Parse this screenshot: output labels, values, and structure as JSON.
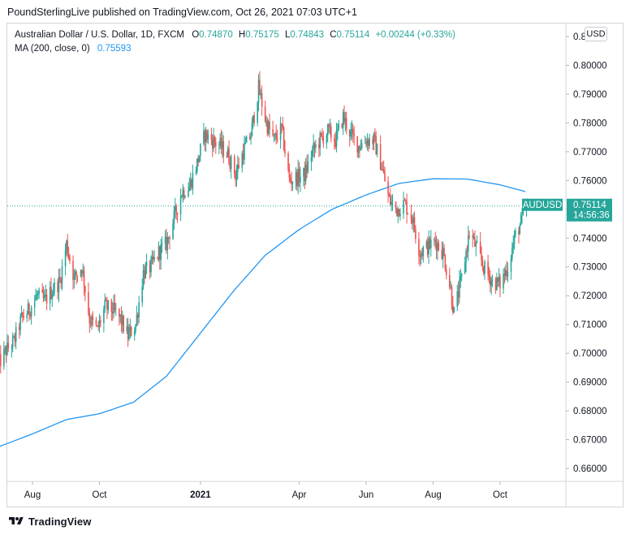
{
  "header": {
    "publisher_line": "PoundSterlingLive published on TradingView.com, Oct 26, 2021 07:03 UTC+1"
  },
  "legend": {
    "symbol_desc": "Australian Dollar / U.S. Dollar, 1D, FXCM",
    "o_label": "O",
    "o_value": "0.74870",
    "h_label": "H",
    "h_value": "0.75175",
    "l_label": "L",
    "l_value": "0.74843",
    "c_label": "C",
    "c_value": "0.75114",
    "change": "+0.00244 (+0.33%)",
    "ma_label": "MA (200, close, 0)",
    "ma_value": "0.75593"
  },
  "currency_badge": "USD",
  "price_badge": {
    "symbol": "AUDUSD",
    "price": "0.75114",
    "countdown": "14:56:36"
  },
  "footer": {
    "brand": "TradingView",
    "logo_icon": "tradingview-logo-icon"
  },
  "colors": {
    "up": "#26a69a",
    "down": "#ef5350",
    "ma": "#2196f3",
    "last_price": "#26a69a"
  },
  "chart_data": {
    "type": "candlestick",
    "symbol": "AUDUSD",
    "timeframe": "1D",
    "yaxis": {
      "range": [
        0.6555,
        0.8145
      ],
      "ticks": [
        "0.81000",
        "0.80000",
        "0.79000",
        "0.78000",
        "0.77000",
        "0.76000",
        "0.75000",
        "0.74000",
        "0.73000",
        "0.72000",
        "0.71000",
        "0.70000",
        "0.69000",
        "0.68000",
        "0.67000",
        "0.66000"
      ]
    },
    "xaxis": {
      "labels": [
        {
          "text": "Aug",
          "date": "2020-08-01",
          "bold": false
        },
        {
          "text": "Oct",
          "date": "2020-10-01",
          "bold": false
        },
        {
          "text": "2021",
          "date": "2021-01-01",
          "bold": true
        },
        {
          "text": "Apr",
          "date": "2021-04-01",
          "bold": false
        },
        {
          "text": "Jun",
          "date": "2021-06-01",
          "bold": false
        },
        {
          "text": "Aug",
          "date": "2021-08-01",
          "bold": false
        },
        {
          "text": "Oct",
          "date": "2021-10-01",
          "bold": false
        }
      ]
    },
    "last_price": 0.75114,
    "close_path": [
      [
        "2020-07-01",
        0.696
      ],
      [
        "2020-07-08",
        0.701
      ],
      [
        "2020-07-15",
        0.704
      ],
      [
        "2020-07-22",
        0.712
      ],
      [
        "2020-07-29",
        0.715
      ],
      [
        "2020-08-05",
        0.72
      ],
      [
        "2020-08-12",
        0.718
      ],
      [
        "2020-08-19",
        0.722
      ],
      [
        "2020-08-26",
        0.725
      ],
      [
        "2020-09-01",
        0.738
      ],
      [
        "2020-09-08",
        0.726
      ],
      [
        "2020-09-15",
        0.73
      ],
      [
        "2020-09-22",
        0.712
      ],
      [
        "2020-09-29",
        0.708
      ],
      [
        "2020-10-06",
        0.716
      ],
      [
        "2020-10-13",
        0.715
      ],
      [
        "2020-10-20",
        0.712
      ],
      [
        "2020-10-27",
        0.706
      ],
      [
        "2020-11-03",
        0.71
      ],
      [
        "2020-11-10",
        0.728
      ],
      [
        "2020-11-17",
        0.73
      ],
      [
        "2020-11-24",
        0.735
      ],
      [
        "2020-12-01",
        0.738
      ],
      [
        "2020-12-08",
        0.747
      ],
      [
        "2020-12-15",
        0.756
      ],
      [
        "2020-12-22",
        0.758
      ],
      [
        "2020-12-29",
        0.766
      ],
      [
        "2021-01-05",
        0.776
      ],
      [
        "2021-01-12",
        0.774
      ],
      [
        "2021-01-19",
        0.772
      ],
      [
        "2021-01-26",
        0.769
      ],
      [
        "2021-02-02",
        0.762
      ],
      [
        "2021-02-09",
        0.77
      ],
      [
        "2021-02-16",
        0.776
      ],
      [
        "2021-02-23",
        0.792
      ],
      [
        "2021-03-02",
        0.78
      ],
      [
        "2021-03-09",
        0.774
      ],
      [
        "2021-03-16",
        0.778
      ],
      [
        "2021-03-23",
        0.76
      ],
      [
        "2021-03-30",
        0.761
      ],
      [
        "2021-04-06",
        0.762
      ],
      [
        "2021-04-13",
        0.77
      ],
      [
        "2021-04-20",
        0.774
      ],
      [
        "2021-04-27",
        0.777
      ],
      [
        "2021-05-04",
        0.774
      ],
      [
        "2021-05-11",
        0.782
      ],
      [
        "2021-05-18",
        0.776
      ],
      [
        "2021-05-25",
        0.772
      ],
      [
        "2021-06-01",
        0.774
      ],
      [
        "2021-06-08",
        0.774
      ],
      [
        "2021-06-15",
        0.765
      ],
      [
        "2021-06-22",
        0.753
      ],
      [
        "2021-06-29",
        0.75
      ],
      [
        "2021-07-06",
        0.752
      ],
      [
        "2021-07-13",
        0.747
      ],
      [
        "2021-07-20",
        0.735
      ],
      [
        "2021-07-27",
        0.737
      ],
      [
        "2021-08-03",
        0.739
      ],
      [
        "2021-08-10",
        0.735
      ],
      [
        "2021-08-17",
        0.722
      ],
      [
        "2021-08-20",
        0.714
      ],
      [
        "2021-08-27",
        0.726
      ],
      [
        "2021-09-03",
        0.742
      ],
      [
        "2021-09-10",
        0.736
      ],
      [
        "2021-09-17",
        0.729
      ],
      [
        "2021-09-24",
        0.725
      ],
      [
        "2021-10-01",
        0.724
      ],
      [
        "2021-10-08",
        0.73
      ],
      [
        "2021-10-15",
        0.741
      ],
      [
        "2021-10-22",
        0.747
      ],
      [
        "2021-10-26",
        0.7511
      ]
    ],
    "ma_path": [
      [
        "2020-07-01",
        0.6675
      ],
      [
        "2020-08-01",
        0.672
      ],
      [
        "2020-09-01",
        0.677
      ],
      [
        "2020-10-01",
        0.679
      ],
      [
        "2020-11-01",
        0.683
      ],
      [
        "2020-12-01",
        0.692
      ],
      [
        "2021-01-01",
        0.707
      ],
      [
        "2021-02-01",
        0.722
      ],
      [
        "2021-03-01",
        0.734
      ],
      [
        "2021-04-01",
        0.743
      ],
      [
        "2021-05-01",
        0.75
      ],
      [
        "2021-06-01",
        0.755
      ],
      [
        "2021-07-01",
        0.759
      ],
      [
        "2021-08-01",
        0.7606
      ],
      [
        "2021-09-01",
        0.7605
      ],
      [
        "2021-10-01",
        0.7585
      ],
      [
        "2021-10-26",
        0.75593
      ]
    ]
  }
}
